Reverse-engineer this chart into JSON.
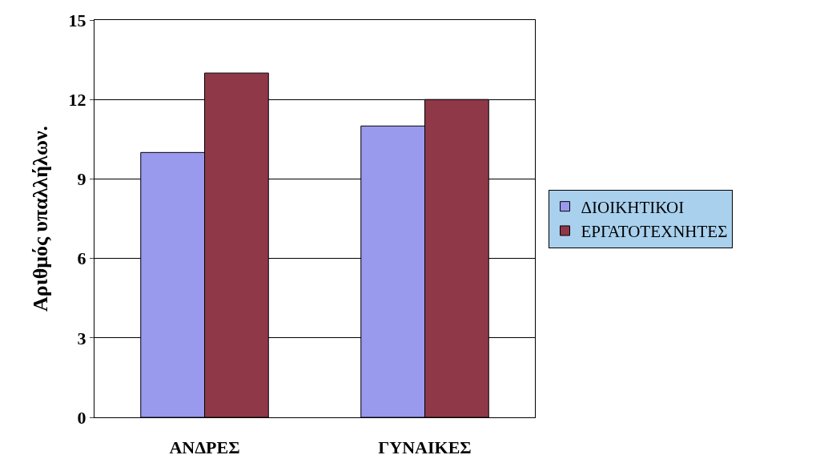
{
  "chart_data": {
    "type": "bar",
    "ylabel": "Αριθμός υπαλλήλων.",
    "categories": [
      "ΑΝΔΡΕΣ",
      "ΓΥΝΑΙΚΕΣ"
    ],
    "series": [
      {
        "name": "ΔΙΟΙΚΗΤΙΚΟΙ",
        "color": "#9999ee",
        "values": [
          10,
          11
        ]
      },
      {
        "name": "ΕΡΓΑΤΟΤΕΧΝΗΤΕΣ",
        "color": "#8e3848",
        "values": [
          13,
          12
        ]
      }
    ],
    "ylim": [
      0,
      15
    ],
    "yticks": [
      0,
      3,
      6,
      9,
      12,
      15
    ],
    "grid": "y",
    "legend": "right"
  }
}
